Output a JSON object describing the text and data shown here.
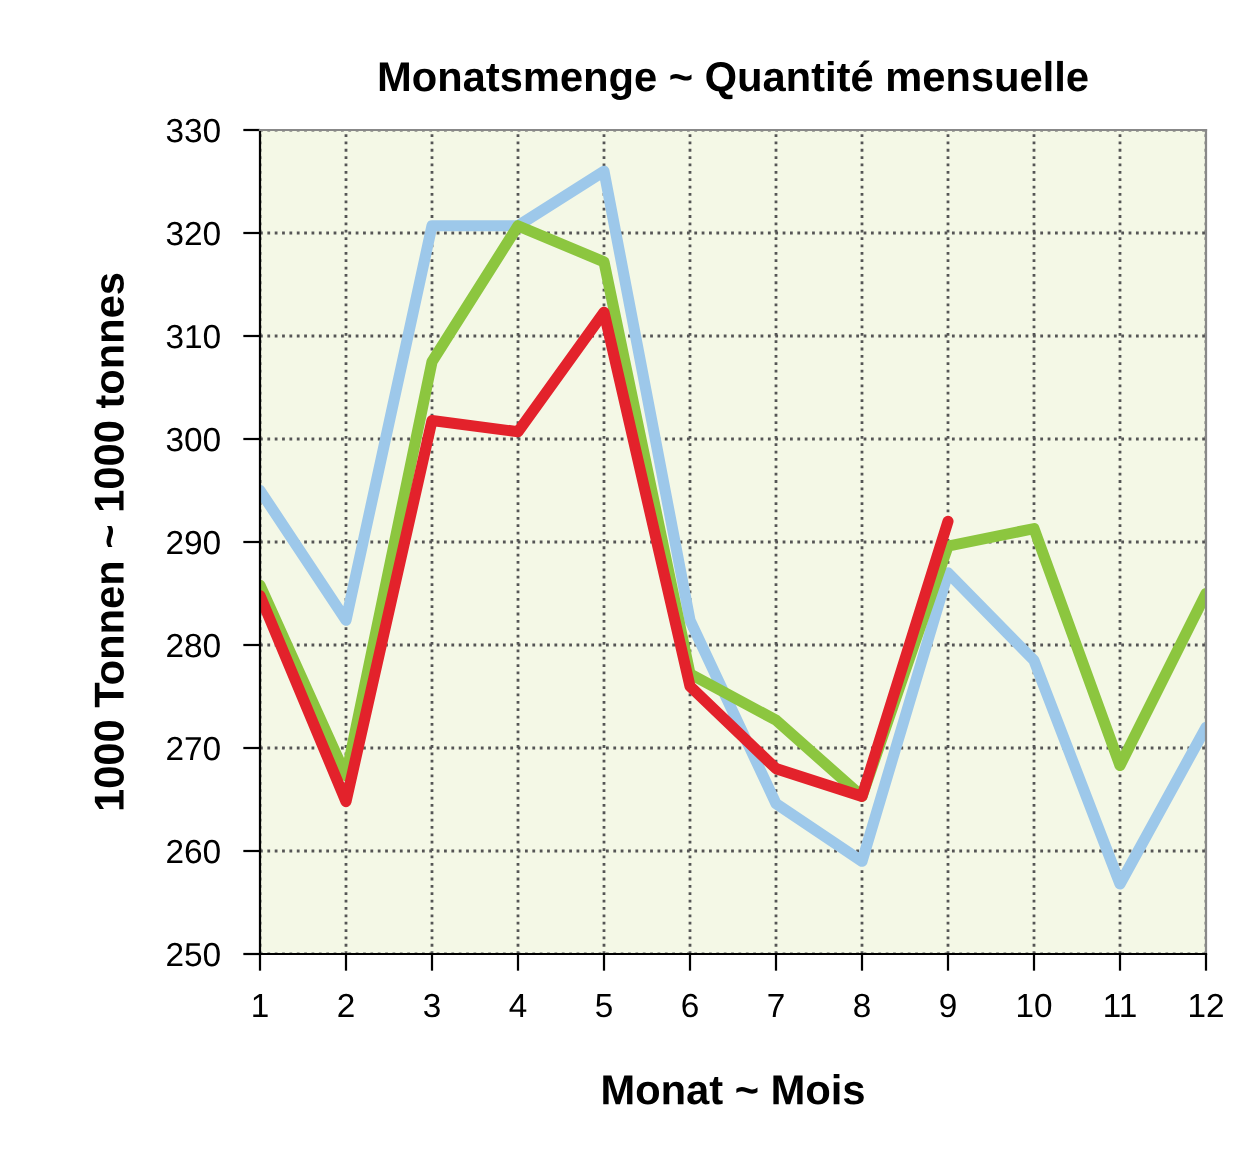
{
  "chart_data": {
    "type": "line",
    "title": "Monatsmenge ~ Quantité mensuelle",
    "xlabel": "Monat ~ Mois",
    "ylabel": "1000 Tonnen ~ 1000 tonnes",
    "x": [
      1,
      2,
      3,
      4,
      5,
      6,
      7,
      8,
      9,
      10,
      11,
      12
    ],
    "series": [
      {
        "color": "#9dc8ea",
        "values": [
          295,
          282.4,
          320.7,
          320.7,
          326,
          282.4,
          264.6,
          259,
          287,
          278.5,
          256.8,
          272
        ]
      },
      {
        "color": "#8cc63f",
        "values": [
          285.8,
          267.3,
          307.5,
          320.7,
          317.2,
          277.2,
          272.7,
          265.3,
          289.6,
          291.3,
          268.3,
          285
        ]
      },
      {
        "color": "#e3222b",
        "values": [
          284.8,
          264.8,
          301.8,
          300.7,
          312.3,
          276,
          268,
          265.3,
          292,
          null,
          null,
          null
        ]
      }
    ],
    "xlim": [
      1,
      12
    ],
    "xticks": [
      1,
      2,
      3,
      4,
      5,
      6,
      7,
      8,
      9,
      10,
      11,
      12
    ],
    "ylim": [
      250,
      330
    ],
    "yticks": [
      250,
      260,
      270,
      280,
      290,
      300,
      310,
      320,
      330
    ],
    "grid": true,
    "line_style": "solid",
    "legend": false
  }
}
